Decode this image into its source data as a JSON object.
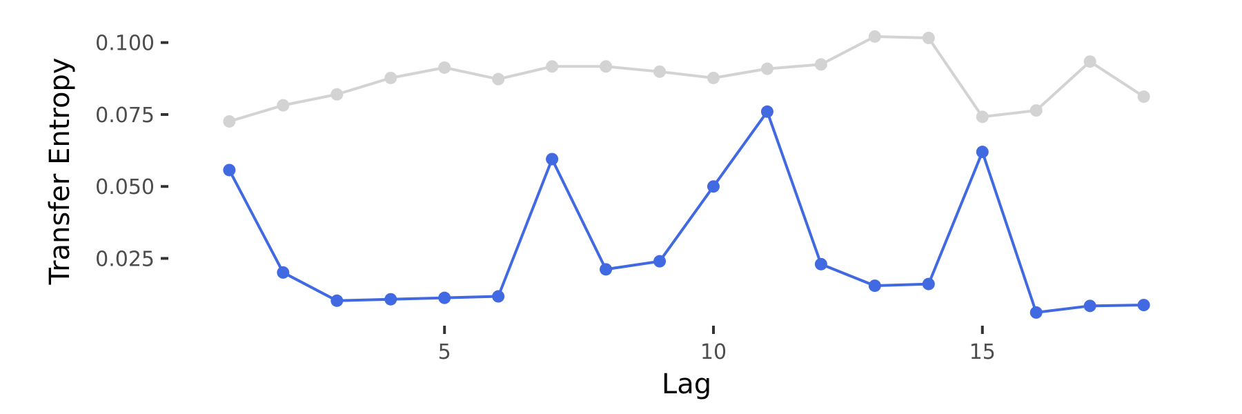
{
  "chart_data": {
    "type": "line",
    "xlabel": "Lag",
    "ylabel": "Transfer Entropy",
    "xlim": [
      0.2,
      18.8
    ],
    "ylim": [
      0.0045,
      0.1052
    ],
    "x_ticks": [
      5,
      10,
      15
    ],
    "x_tick_labels": [
      "5",
      "10",
      "15"
    ],
    "y_ticks": [
      0.025,
      0.05,
      0.075,
      0.1
    ],
    "y_tick_labels": [
      "0.025",
      "0.050",
      "0.075",
      "0.100"
    ],
    "grid": false,
    "legend": "none",
    "x": [
      1,
      2,
      3,
      4,
      5,
      6,
      7,
      8,
      9,
      10,
      11,
      12,
      13,
      14,
      15,
      16,
      17,
      18
    ],
    "series": [
      {
        "color": "#d3d3d3",
        "values": [
          0.0726,
          0.0782,
          0.082,
          0.0877,
          0.0913,
          0.0873,
          0.0917,
          0.0917,
          0.0899,
          0.0877,
          0.0909,
          0.0924,
          0.1021,
          0.1016,
          0.0742,
          0.0764,
          0.0934,
          0.0812
        ]
      },
      {
        "color": "#4169e1",
        "values": [
          0.0557,
          0.0201,
          0.0103,
          0.0108,
          0.0113,
          0.0118,
          0.0595,
          0.0212,
          0.024,
          0.05,
          0.076,
          0.023,
          0.0155,
          0.0161,
          0.062,
          0.0062,
          0.0085,
          0.0088
        ]
      }
    ]
  }
}
